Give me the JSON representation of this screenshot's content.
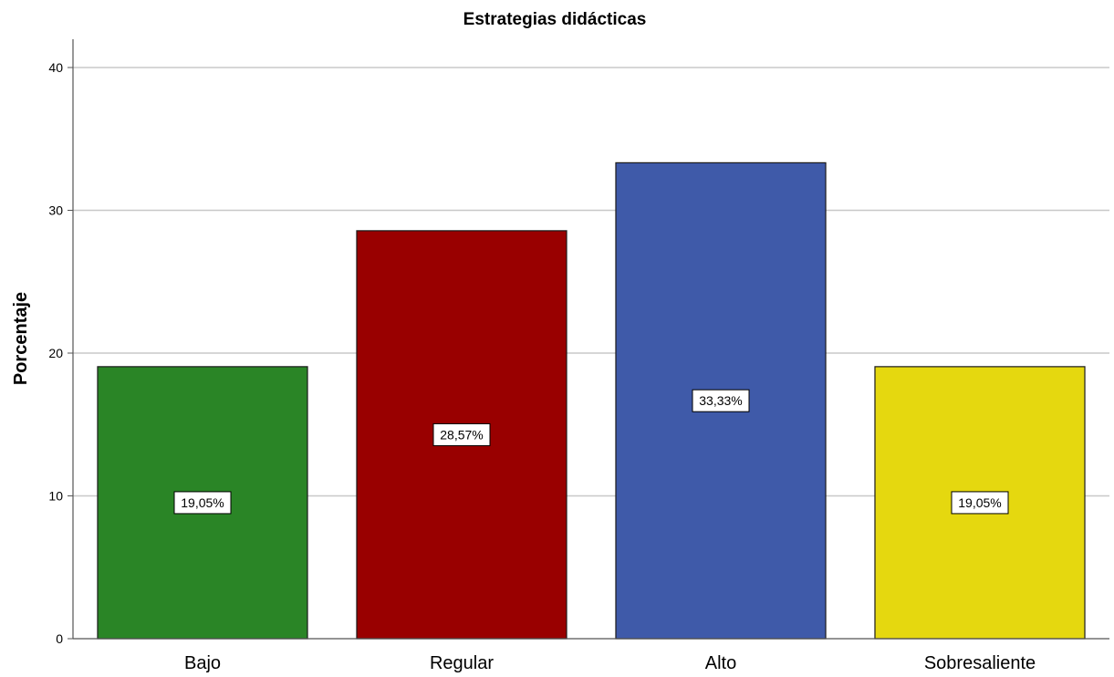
{
  "chart_data": {
    "type": "bar",
    "title": "Estrategias didácticas",
    "xlabel": "",
    "ylabel": "Porcentaje",
    "categories": [
      "Bajo",
      "Regular",
      "Alto",
      "Sobresaliente"
    ],
    "values": [
      19.05,
      28.57,
      33.33,
      19.05
    ],
    "data_labels": [
      "19,05%",
      "28,57%",
      "33,33%",
      "19,05%"
    ],
    "colors": [
      "#2a8526",
      "#990000",
      "#3f5aa9",
      "#e5d80f"
    ],
    "ylim": [
      0,
      40
    ],
    "yticks": [
      0,
      10,
      20,
      30,
      40
    ],
    "grid": true,
    "legend": "none"
  }
}
